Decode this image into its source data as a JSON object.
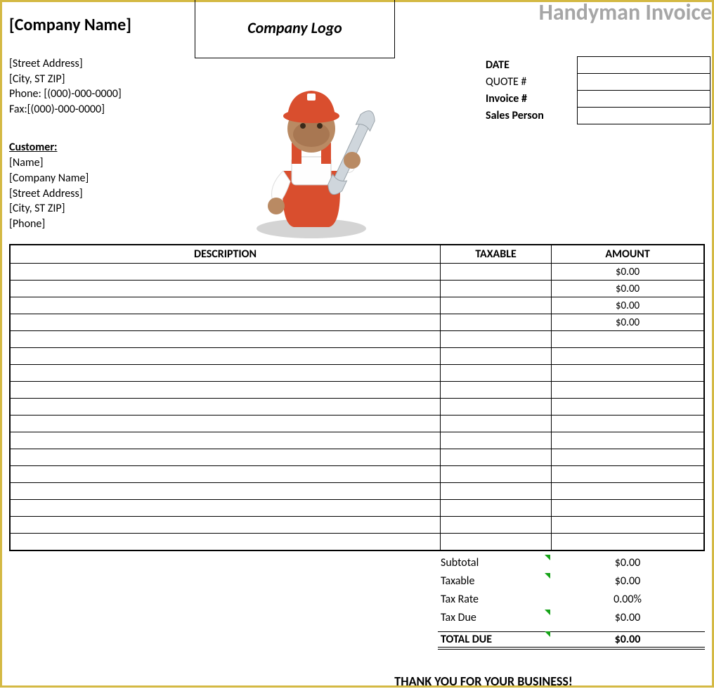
{
  "title": "Handyman Invoice",
  "colors": {
    "page_border": "#d4b943",
    "title_gray": "#a6a6a6",
    "tick_green": "#16a318",
    "handyman_red": "#d94e2e",
    "handyman_skin": "#b98a63",
    "handyman_wrench": "#cfd6dc",
    "handyman_shadow": "#b8b8b8"
  },
  "company": {
    "name": "[Company Name]",
    "street": "[Street Address]",
    "city_zip": "[City, ST ZIP]",
    "phone": "Phone: [(000)-000-0000]",
    "fax": "Fax:[(000)-000-0000]"
  },
  "logo_placeholder": "Company Logo",
  "meta_labels": {
    "date": "DATE",
    "quote": "QUOTE #",
    "invoice": "Invoice #",
    "sales": "Sales Person"
  },
  "meta_values": {
    "date": "",
    "quote": "",
    "invoice": "",
    "sales": ""
  },
  "customer": {
    "heading": "Customer:",
    "name": "[Name]",
    "company": "[Company Name]",
    "street": "[Street Address]",
    "city_zip": "[City, ST ZIP]",
    "phone": "[Phone]"
  },
  "table": {
    "headers": {
      "description": "DESCRIPTION",
      "taxable": "TAXABLE",
      "amount": "AMOUNT"
    },
    "column_widths_pct": [
      62,
      16,
      22
    ],
    "rows": [
      {
        "description": "",
        "taxable": "",
        "amount": "$0.00"
      },
      {
        "description": "",
        "taxable": "",
        "amount": "$0.00"
      },
      {
        "description": "",
        "taxable": "",
        "amount": "$0.00"
      },
      {
        "description": "",
        "taxable": "",
        "amount": "$0.00"
      },
      {
        "description": "",
        "taxable": "",
        "amount": ""
      },
      {
        "description": "",
        "taxable": "",
        "amount": ""
      },
      {
        "description": "",
        "taxable": "",
        "amount": ""
      },
      {
        "description": "",
        "taxable": "",
        "amount": ""
      },
      {
        "description": "",
        "taxable": "",
        "amount": ""
      },
      {
        "description": "",
        "taxable": "",
        "amount": ""
      },
      {
        "description": "",
        "taxable": "",
        "amount": ""
      },
      {
        "description": "",
        "taxable": "",
        "amount": ""
      },
      {
        "description": "",
        "taxable": "",
        "amount": ""
      },
      {
        "description": "",
        "taxable": "",
        "amount": ""
      },
      {
        "description": "",
        "taxable": "",
        "amount": ""
      },
      {
        "description": "",
        "taxable": "",
        "amount": ""
      },
      {
        "description": "",
        "taxable": "",
        "amount": ""
      }
    ]
  },
  "totals": {
    "subtotal": {
      "label": "Subtotal",
      "value": "$0.00",
      "tick": true
    },
    "taxable": {
      "label": "Taxable",
      "value": "$0.00",
      "tick": true
    },
    "taxrate": {
      "label": "Tax Rate",
      "value": "0.00%",
      "tick": false
    },
    "taxdue": {
      "label": "Tax Due",
      "value": "$0.00",
      "tick": true
    },
    "totaldue": {
      "label": "TOTAL DUE",
      "value": "$0.00",
      "tick": true
    }
  },
  "footer": "THANK YOU FOR YOUR BUSINESS!"
}
